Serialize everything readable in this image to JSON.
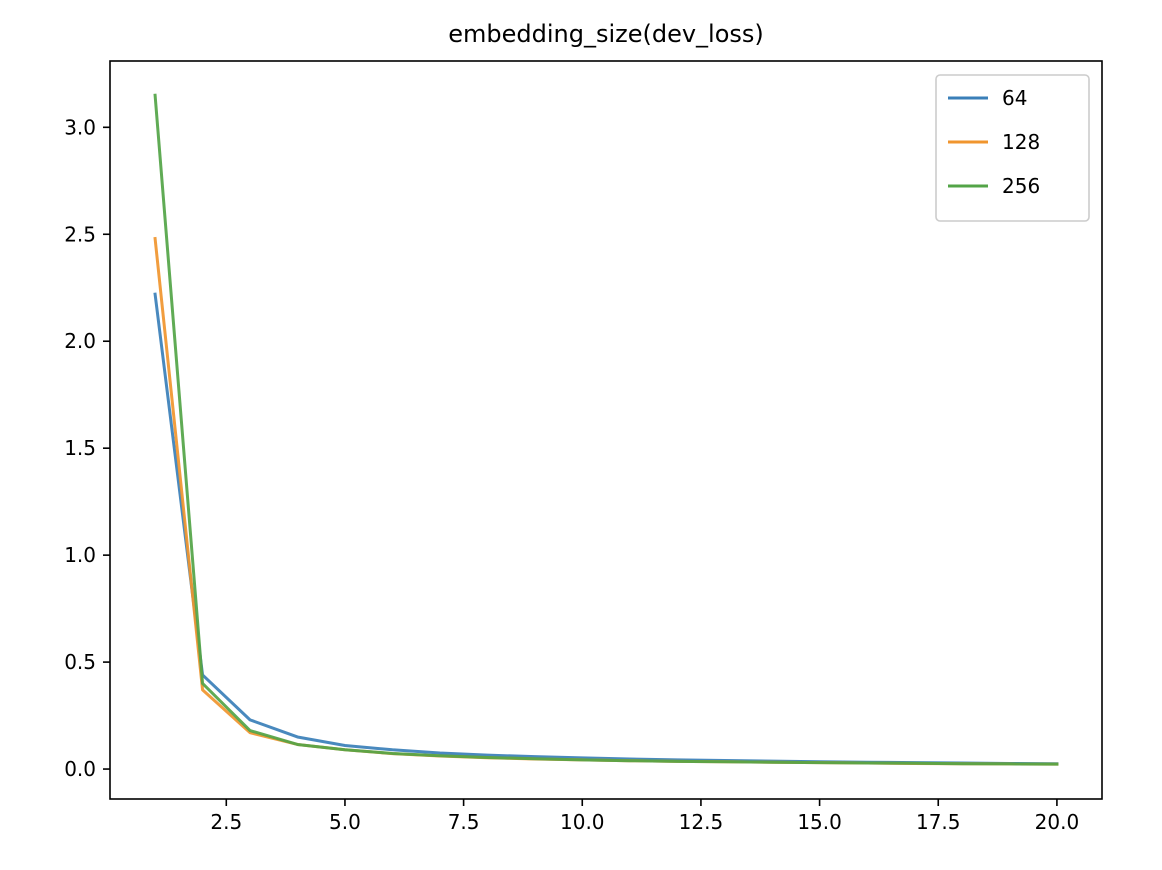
{
  "chart_data": {
    "type": "line",
    "title": "embedding_size(dev_loss)",
    "xlabel": "",
    "ylabel": "",
    "xlim": [
      0.05,
      20.95
    ],
    "ylim": [
      -0.14,
      3.31
    ],
    "xticks": [
      2.5,
      5.0,
      7.5,
      10.0,
      12.5,
      15.0,
      17.5,
      20.0
    ],
    "yticks": [
      0.0,
      0.5,
      1.0,
      1.5,
      2.0,
      2.5,
      3.0
    ],
    "grid": false,
    "legend_position": "top-right",
    "x": [
      1,
      2,
      3,
      4,
      5,
      6,
      7,
      8,
      9,
      10,
      11,
      12,
      13,
      14,
      15,
      16,
      17,
      18,
      19,
      20
    ],
    "series": [
      {
        "name": "64",
        "color": "#3a7fb8",
        "values": [
          2.22,
          0.44,
          0.23,
          0.15,
          0.11,
          0.09,
          0.075,
          0.065,
          0.058,
          0.052,
          0.047,
          0.043,
          0.04,
          0.037,
          0.034,
          0.032,
          0.03,
          0.028,
          0.026,
          0.025
        ]
      },
      {
        "name": "128",
        "color": "#f0952e",
        "values": [
          2.48,
          0.37,
          0.17,
          0.115,
          0.09,
          0.072,
          0.061,
          0.053,
          0.047,
          0.043,
          0.039,
          0.036,
          0.034,
          0.032,
          0.03,
          0.028,
          0.026,
          0.025,
          0.024,
          0.023
        ]
      },
      {
        "name": "256",
        "color": "#53a447",
        "values": [
          3.15,
          0.4,
          0.18,
          0.115,
          0.09,
          0.073,
          0.062,
          0.054,
          0.048,
          0.043,
          0.039,
          0.036,
          0.034,
          0.032,
          0.03,
          0.028,
          0.027,
          0.025,
          0.024,
          0.023
        ]
      }
    ]
  }
}
